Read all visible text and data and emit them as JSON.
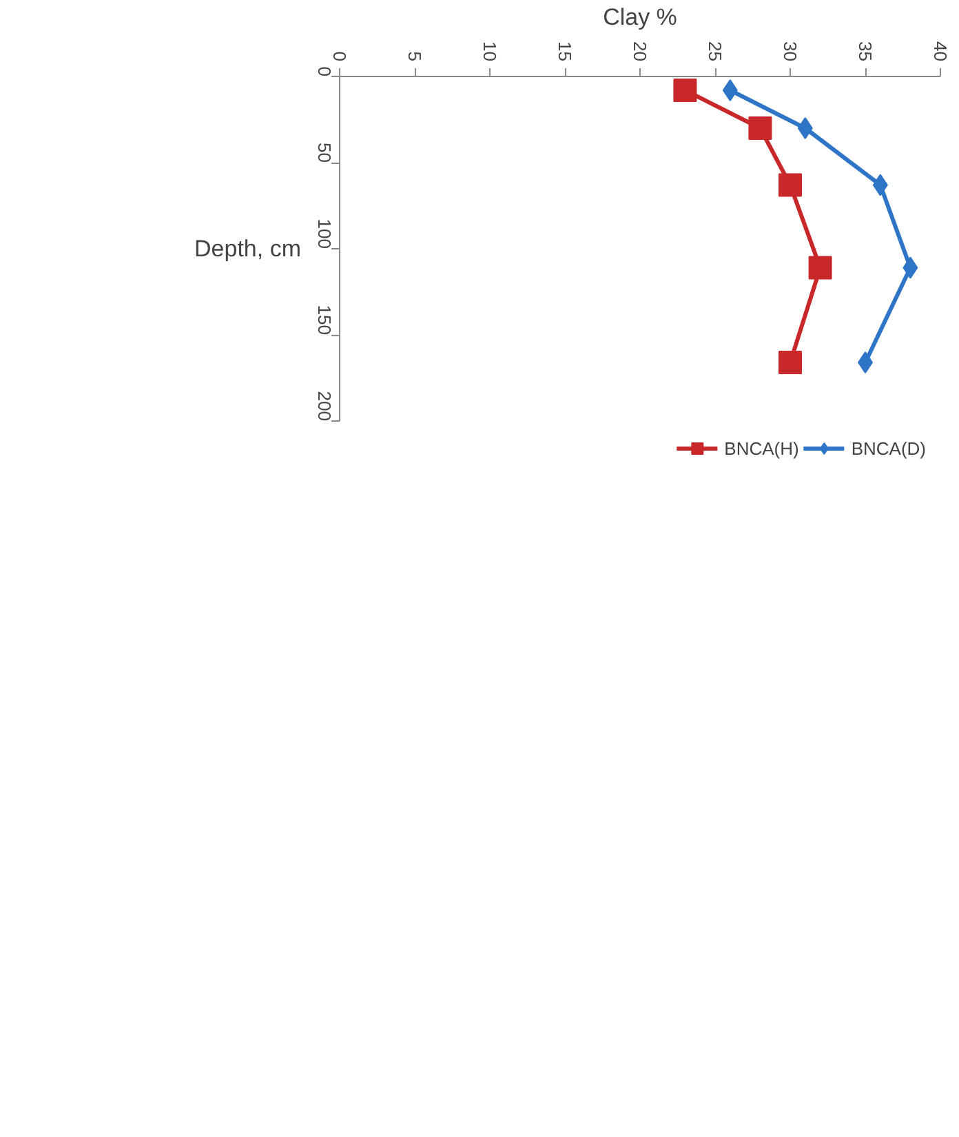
{
  "chart_data": {
    "type": "line",
    "xlabel": "Clay %",
    "ylabel": "Depth, cm",
    "xlim": [
      0,
      40
    ],
    "xticks": [
      0,
      5,
      10,
      15,
      20,
      25,
      30,
      35,
      40
    ],
    "ylim": [
      200,
      0
    ],
    "yticks": [
      0,
      50,
      100,
      150,
      200
    ],
    "series": [
      {
        "name": "BNCA(D)",
        "color": "#2e75c8",
        "marker": "diamond",
        "x": [
          26,
          31,
          36,
          38,
          35
        ],
        "values": [
          8,
          30,
          63,
          111,
          166
        ]
      },
      {
        "name": "BNCA(H)",
        "color": "#c8282a",
        "marker": "square",
        "x": [
          23,
          28,
          30,
          32,
          30
        ],
        "values": [
          8,
          30,
          63,
          111,
          166
        ]
      }
    ],
    "grid": false,
    "legend": "bottom"
  }
}
